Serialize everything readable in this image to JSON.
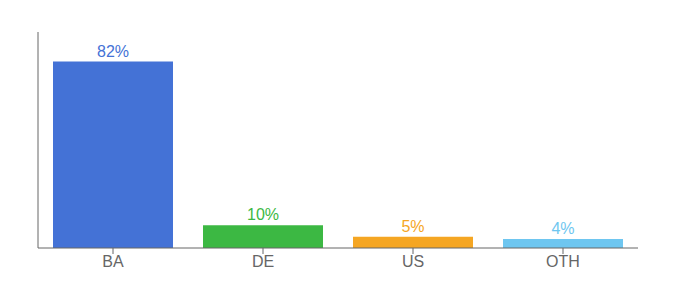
{
  "chart_data": {
    "type": "bar",
    "categories": [
      "BA",
      "DE",
      "US",
      "OTH"
    ],
    "values": [
      82,
      10,
      5,
      4
    ],
    "value_labels": [
      "82%",
      "10%",
      "5%",
      "4%"
    ],
    "colors": [
      "#4472d6",
      "#3cb843",
      "#f5a623",
      "#6ec6f0"
    ],
    "ylim": [
      0,
      95
    ],
    "data_labels": true,
    "tick_labels": "x",
    "grid": false
  }
}
